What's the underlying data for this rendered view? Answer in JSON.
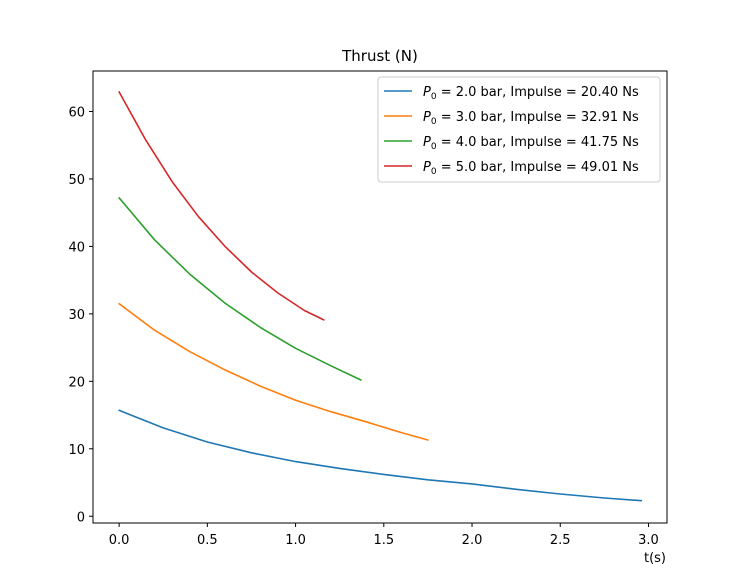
{
  "chart_data": {
    "type": "line",
    "title": "Thrust (N)",
    "xlabel": "t(s)",
    "ylabel": "",
    "xlim": [
      -0.148,
      3.105
    ],
    "ylim": [
      -1.0,
      66.0
    ],
    "xticks": [
      0.0,
      0.5,
      1.0,
      1.5,
      2.0,
      2.5,
      3.0
    ],
    "xtick_labels": [
      "0.0",
      "0.5",
      "1.0",
      "1.5",
      "2.0",
      "2.5",
      "3.0"
    ],
    "yticks": [
      0,
      10,
      20,
      30,
      40,
      50,
      60
    ],
    "ytick_labels": [
      "0",
      "10",
      "20",
      "30",
      "40",
      "50",
      "60"
    ],
    "grid": false,
    "legend_position": "top-right",
    "series": [
      {
        "name_prefix": "P",
        "name_sub": "0",
        "name_rest": " = 2.0 bar, Impulse = 20.40 Ns",
        "color": "#1f77b4",
        "x": [
          0.0,
          0.25,
          0.5,
          0.75,
          1.0,
          1.25,
          1.5,
          1.75,
          2.0,
          2.25,
          2.5,
          2.75,
          2.96
        ],
        "y": [
          15.7,
          13.1,
          11.0,
          9.4,
          8.1,
          7.1,
          6.2,
          5.4,
          4.8,
          4.0,
          3.3,
          2.7,
          2.3
        ]
      },
      {
        "name_prefix": "P",
        "name_sub": "0",
        "name_rest": " = 3.0 bar, Impulse = 32.91 Ns",
        "color": "#ff7f0e",
        "x": [
          0.0,
          0.2,
          0.4,
          0.6,
          0.8,
          1.0,
          1.2,
          1.4,
          1.6,
          1.75
        ],
        "y": [
          31.5,
          27.6,
          24.4,
          21.7,
          19.3,
          17.2,
          15.5,
          14.0,
          12.4,
          11.3
        ]
      },
      {
        "name_prefix": "P",
        "name_sub": "0",
        "name_rest": " = 4.0 bar, Impulse = 41.75 Ns",
        "color": "#2ca02c",
        "x": [
          0.0,
          0.2,
          0.4,
          0.6,
          0.8,
          1.0,
          1.2,
          1.37
        ],
        "y": [
          47.2,
          41.0,
          35.9,
          31.6,
          28.0,
          24.9,
          22.3,
          20.2
        ]
      },
      {
        "name_prefix": "P",
        "name_sub": "0",
        "name_rest": " = 5.0 bar, Impulse = 49.01 Ns",
        "color": "#d62728",
        "x": [
          0.0,
          0.15,
          0.3,
          0.45,
          0.6,
          0.75,
          0.9,
          1.05,
          1.16
        ],
        "y": [
          62.9,
          55.8,
          49.6,
          44.4,
          40.0,
          36.2,
          33.1,
          30.5,
          29.1
        ]
      }
    ]
  }
}
